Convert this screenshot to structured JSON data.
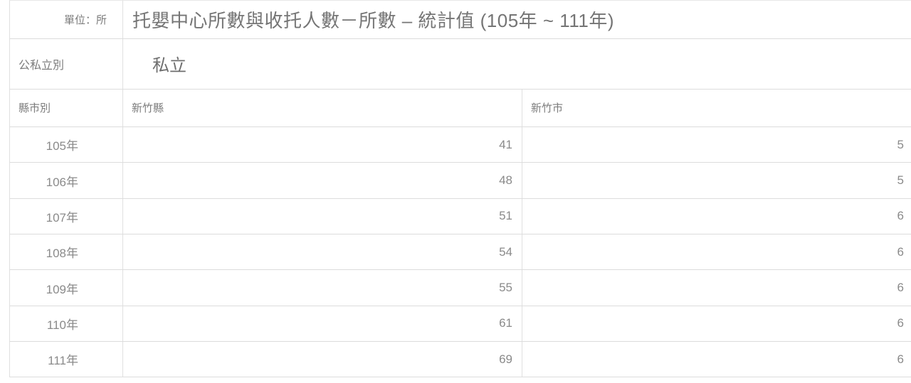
{
  "table": {
    "unit_label": "單位：所",
    "title": "托嬰中心所數與收托人數－所數 – 統計值 (105年 ~ 111年)",
    "ownership": {
      "label": "公私立別",
      "value": "私立"
    },
    "region": {
      "label": "縣市別",
      "columns": [
        "新竹縣",
        "新竹市"
      ]
    },
    "rows": [
      {
        "year": "105年",
        "values": [
          "41",
          "5"
        ]
      },
      {
        "year": "106年",
        "values": [
          "48",
          "5"
        ]
      },
      {
        "year": "107年",
        "values": [
          "51",
          "6"
        ]
      },
      {
        "year": "108年",
        "values": [
          "54",
          "6"
        ]
      },
      {
        "year": "109年",
        "values": [
          "55",
          "6"
        ]
      },
      {
        "year": "110年",
        "values": [
          "61",
          "6"
        ]
      },
      {
        "year": "111年",
        "values": [
          "69",
          "6"
        ]
      }
    ],
    "colors": {
      "background": "#ffffff",
      "border": "#dcdcdc",
      "title_text": "#757575",
      "label_text": "#7c7c7c",
      "value_text": "#8a8a8a"
    }
  }
}
